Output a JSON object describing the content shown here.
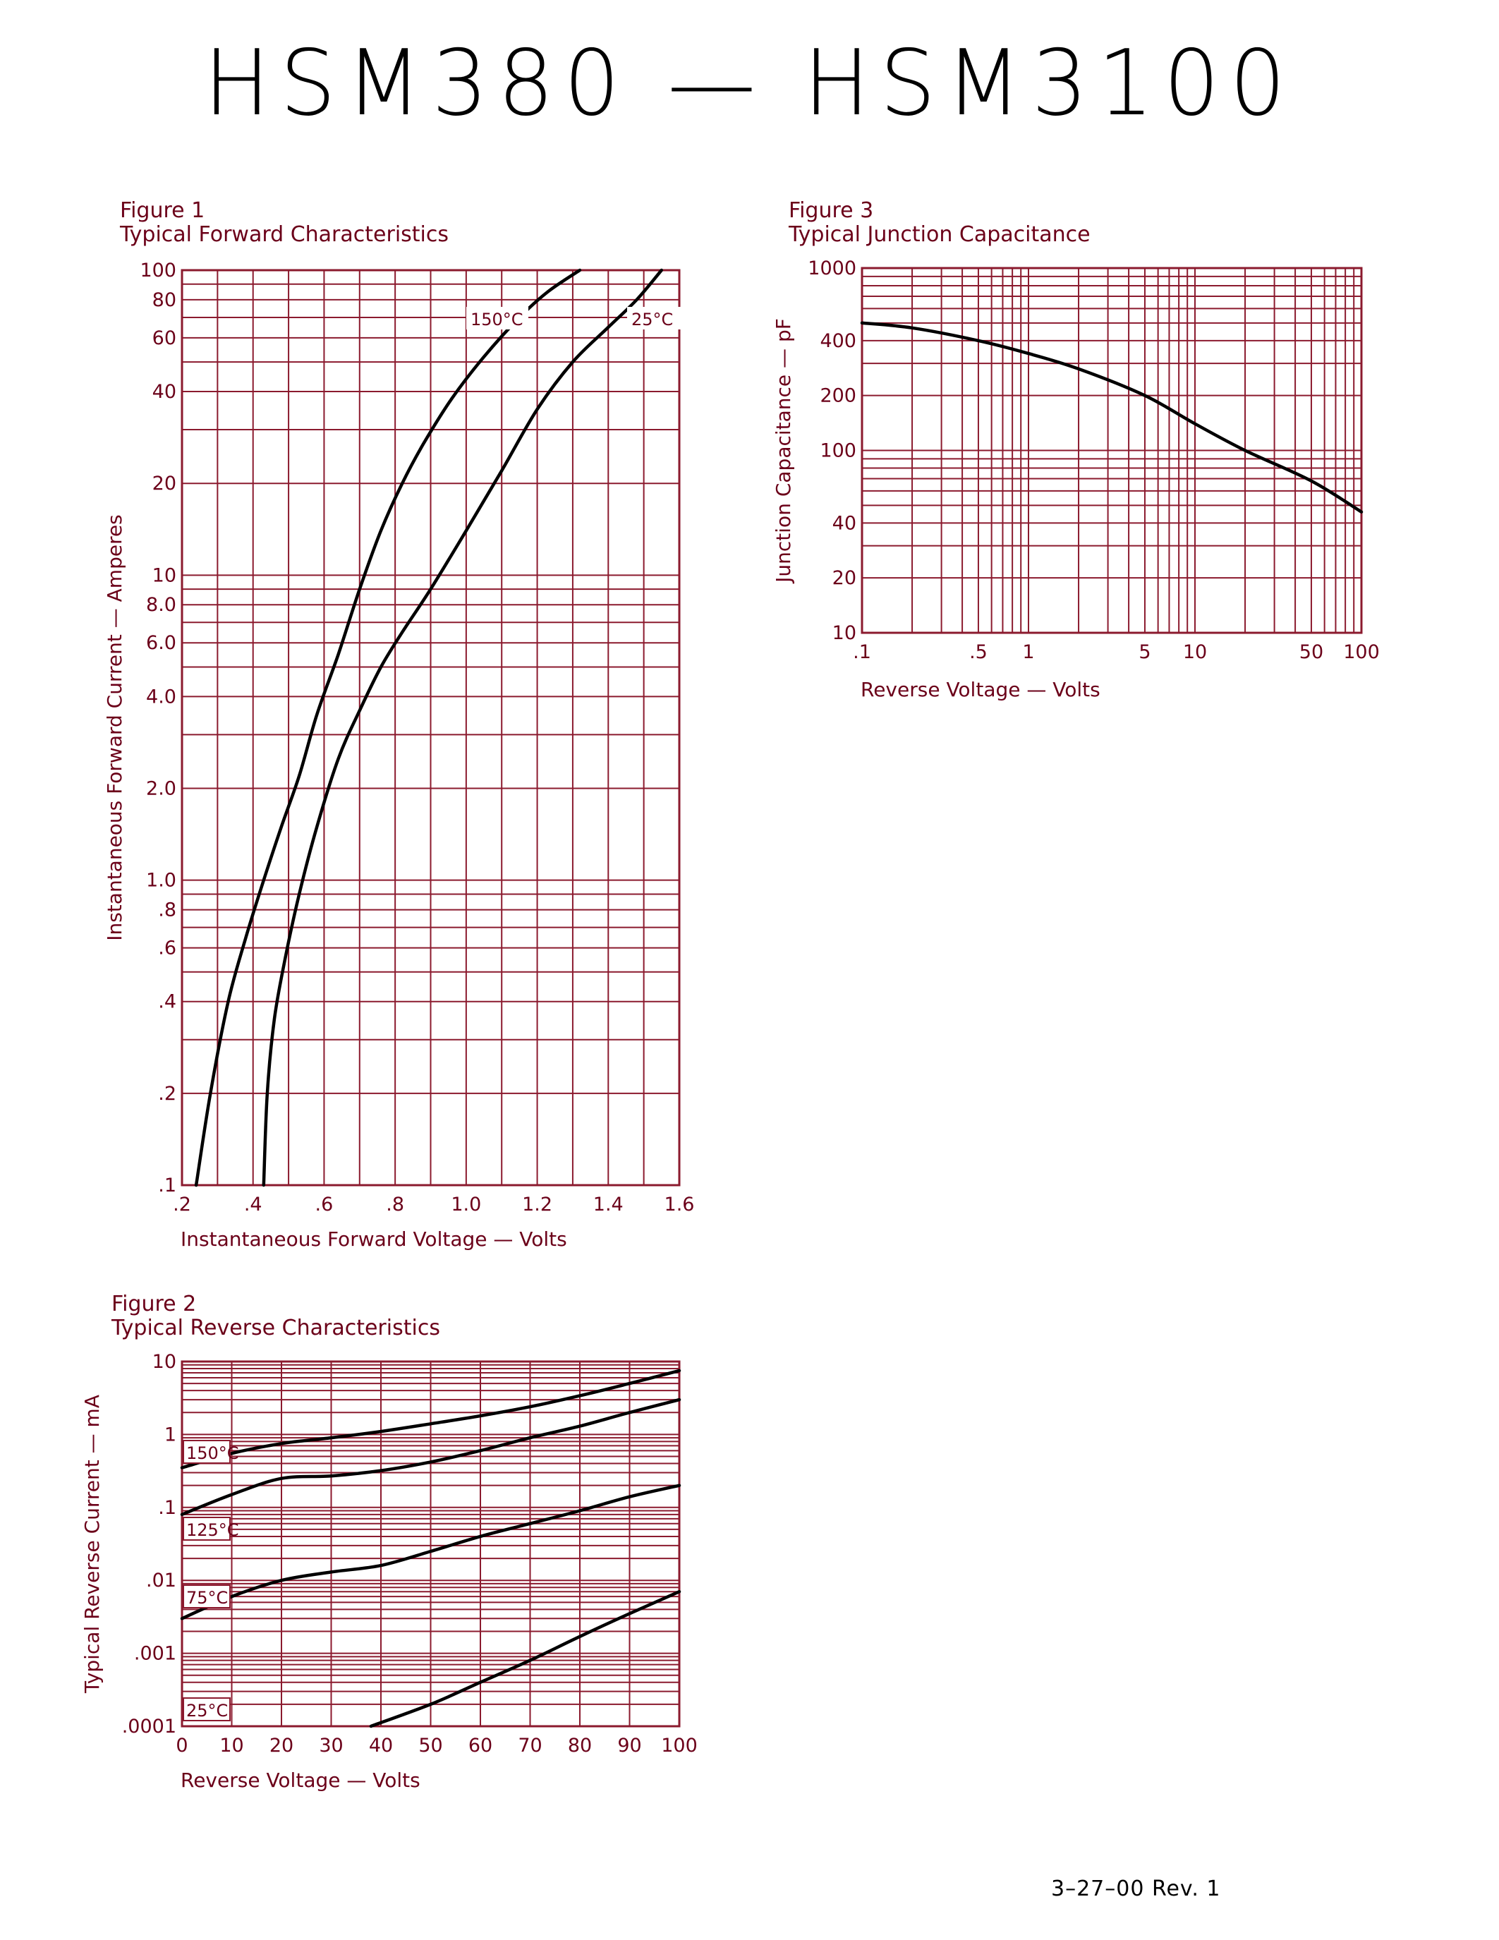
{
  "page": {
    "title": "HSM380 — HSM3100",
    "footer": "3–27–00    Rev. 1",
    "grid_color": "#8b1a2e",
    "text_color": "#6b0019",
    "curve_color": "#000000"
  },
  "chart_data": [
    {
      "figure": "Figure 1",
      "title": "Typical Forward Characteristics",
      "type": "line",
      "xlabel": "Instantaneous Forward Voltage — Volts",
      "ylabel": "Instantaneous Forward Current — Amperes",
      "x_scale": "linear",
      "y_scale": "log",
      "xlim": [
        0.2,
        1.6
      ],
      "ylim": [
        0.1,
        100
      ],
      "x_ticks": [
        0.2,
        0.4,
        0.6,
        0.8,
        1.0,
        1.2,
        1.4,
        1.6
      ],
      "x_tick_labels": [
        ".2",
        ".4",
        ".6",
        ".8",
        "1.0",
        "1.2",
        "1.4",
        "1.6"
      ],
      "y_ticks": [
        0.1,
        0.2,
        0.4,
        0.6,
        0.8,
        1,
        2,
        4,
        6,
        8,
        10,
        20,
        40,
        60,
        80,
        100
      ],
      "y_tick_labels": [
        ".1",
        ".2",
        ".4",
        ".6",
        ".8",
        "1.0",
        "2.0",
        "4.0",
        "6.0",
        "8.0",
        "10",
        "20",
        "40",
        "60",
        "80",
        "100"
      ],
      "grid": true,
      "series": [
        {
          "name": "150°C",
          "x": [
            0.24,
            0.28,
            0.33,
            0.38,
            0.43,
            0.48,
            0.53,
            0.58,
            0.64,
            0.7,
            0.76,
            0.82,
            0.88,
            0.96,
            1.05,
            1.15,
            1.23,
            1.32
          ],
          "y": [
            0.1,
            0.2,
            0.4,
            0.65,
            1.0,
            1.5,
            2.2,
            3.5,
            5.5,
            9,
            14,
            20,
            27,
            38,
            52,
            70,
            85,
            100
          ]
        },
        {
          "name": "25°C",
          "x": [
            0.43,
            0.44,
            0.46,
            0.49,
            0.53,
            0.58,
            0.64,
            0.7,
            0.76,
            0.82,
            0.9,
            1.0,
            1.1,
            1.2,
            1.3,
            1.4,
            1.48,
            1.55
          ],
          "y": [
            0.1,
            0.2,
            0.35,
            0.55,
            0.9,
            1.5,
            2.5,
            3.6,
            5,
            6.5,
            9,
            14,
            22,
            35,
            50,
            65,
            80,
            100
          ]
        }
      ]
    },
    {
      "figure": "Figure 2",
      "title": "Typical Reverse Characteristics",
      "type": "line",
      "xlabel": "Reverse Voltage — Volts",
      "ylabel": "Typical Reverse Current — mA",
      "x_scale": "linear",
      "y_scale": "log",
      "xlim": [
        0,
        100
      ],
      "ylim": [
        0.0001,
        10
      ],
      "x_ticks": [
        0,
        10,
        20,
        30,
        40,
        50,
        60,
        70,
        80,
        90,
        100
      ],
      "x_tick_labels": [
        "0",
        "10",
        "20",
        "30",
        "40",
        "50",
        "60",
        "70",
        "80",
        "90",
        "100"
      ],
      "y_ticks": [
        0.0001,
        0.001,
        0.01,
        0.1,
        1,
        10
      ],
      "y_tick_labels": [
        ".0001",
        ".001",
        ".01",
        ".1",
        "1",
        "10"
      ],
      "grid": true,
      "series": [
        {
          "name": "150°C",
          "x": [
            0,
            10,
            20,
            30,
            40,
            50,
            60,
            70,
            80,
            90,
            100
          ],
          "y": [
            0.35,
            0.55,
            0.75,
            0.9,
            1.1,
            1.4,
            1.8,
            2.4,
            3.4,
            5,
            7.5
          ]
        },
        {
          "name": "125°C",
          "x": [
            0,
            10,
            20,
            30,
            40,
            50,
            60,
            70,
            80,
            90,
            100
          ],
          "y": [
            0.08,
            0.15,
            0.25,
            0.27,
            0.32,
            0.42,
            0.6,
            0.9,
            1.3,
            2,
            3
          ]
        },
        {
          "name": "75°C",
          "x": [
            0,
            10,
            20,
            30,
            40,
            50,
            60,
            70,
            80,
            90,
            100
          ],
          "y": [
            0.003,
            0.006,
            0.01,
            0.013,
            0.016,
            0.025,
            0.04,
            0.06,
            0.09,
            0.14,
            0.2
          ]
        },
        {
          "name": "25°C",
          "x": [
            38,
            50,
            60,
            70,
            80,
            90,
            100
          ],
          "y": [
            0.0001,
            0.0002,
            0.0004,
            0.0008,
            0.0017,
            0.0035,
            0.007
          ]
        }
      ]
    },
    {
      "figure": "Figure 3",
      "title": "Typical Junction Capacitance",
      "type": "line",
      "xlabel": "Reverse Voltage — Volts",
      "ylabel": "Junction Capacitance — pF",
      "x_scale": "log",
      "y_scale": "log",
      "xlim": [
        0.1,
        100
      ],
      "ylim": [
        10,
        1000
      ],
      "x_ticks": [
        0.1,
        0.5,
        1,
        5,
        10,
        50,
        100
      ],
      "x_tick_labels": [
        ".1",
        ".5",
        "1",
        "5",
        "10",
        "50",
        "100"
      ],
      "y_ticks": [
        10,
        20,
        40,
        100,
        200,
        400,
        1000
      ],
      "y_tick_labels": [
        "10",
        "20",
        "40",
        "100",
        "200",
        "400",
        "1000"
      ],
      "grid": true,
      "series": [
        {
          "name": "",
          "x": [
            0.1,
            0.2,
            0.5,
            1,
            2,
            5,
            10,
            20,
            50,
            100
          ],
          "y": [
            500,
            470,
            400,
            340,
            280,
            200,
            140,
            100,
            68,
            46
          ]
        }
      ]
    }
  ]
}
